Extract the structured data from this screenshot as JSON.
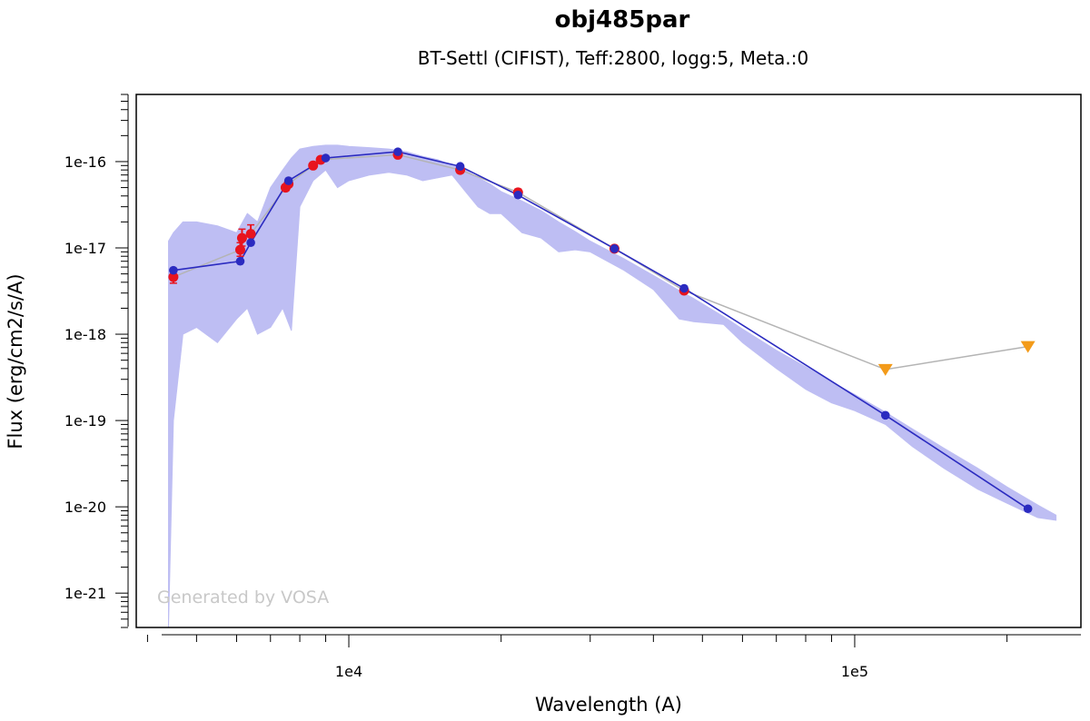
{
  "chart_data": {
    "type": "scatter",
    "title": "obj485par",
    "subtitle": "BT-Settl (CIFIST), Teff:2800, logg:5, Meta.:0",
    "xlabel": "Wavelength (A)",
    "ylabel": "Flux (erg/cm2/s/A)",
    "xscale": "log",
    "yscale": "log",
    "xlim": [
      3800,
      280000
    ],
    "ylim": [
      4e-22,
      6e-16
    ],
    "x_tick_labels": [
      "1e4",
      "1e5"
    ],
    "y_tick_labels": [
      "1e-16",
      "1e-17",
      "1e-18",
      "1e-19",
      "1e-20",
      "1e-21"
    ],
    "watermark": "Generated by VOSA",
    "colors": {
      "model_spectrum": "#b7b7f2",
      "model_points": "#2b2bc0",
      "observed": "#e8141e",
      "upper_limits": "#f39b1a",
      "observed_line": "#b4b4b4"
    },
    "series": [
      {
        "name": "model spectrum",
        "kind": "band",
        "x": [
          4400,
          4500,
          4700,
          5000,
          5500,
          6000,
          6300,
          6600,
          7000,
          7400,
          7700,
          8000,
          8500,
          9000,
          9500,
          10000,
          11000,
          12000,
          13000,
          14000,
          15000,
          16000,
          17000,
          18000,
          19000,
          20000,
          22000,
          24000,
          26000,
          28000,
          30000,
          35000,
          40000,
          45000,
          48000,
          55000,
          60000,
          70000,
          80000,
          90000,
          100000,
          115000,
          130000,
          150000,
          175000,
          200000,
          230000,
          250000
        ],
        "upper": [
          1.2e-17,
          1.5e-17,
          2e-17,
          2e-17,
          1.8e-17,
          1.5e-17,
          2.5e-17,
          2e-17,
          5e-17,
          8e-17,
          1.1e-16,
          1.4e-16,
          1.5e-16,
          1.55e-16,
          1.55e-16,
          1.5e-16,
          1.45e-16,
          1.4e-16,
          1.3e-16,
          1.15e-16,
          1.05e-16,
          9e-17,
          8e-17,
          6.5e-17,
          5.5e-17,
          4.5e-17,
          3.5e-17,
          2.7e-17,
          2e-17,
          1.55e-17,
          1.2e-17,
          7.5e-18,
          4.8e-18,
          3.2e-18,
          2.6e-18,
          1.6e-18,
          1.15e-18,
          6.5e-19,
          4.2e-19,
          2.8e-19,
          2e-19,
          1.25e-19,
          8e-20,
          4.8e-20,
          2.8e-20,
          1.7e-20,
          1.05e-20,
          8e-21
        ],
        "lower": [
          4e-22,
          1e-19,
          1e-18,
          1.2e-18,
          8e-19,
          1.5e-18,
          2e-18,
          1e-18,
          1.2e-18,
          2e-18,
          1.1e-18,
          3e-17,
          6e-17,
          8e-17,
          5e-17,
          6e-17,
          7e-17,
          7.5e-17,
          7e-17,
          6e-17,
          6.5e-17,
          7e-17,
          4.5e-17,
          3e-17,
          2.5e-17,
          2.5e-17,
          1.5e-17,
          1.3e-17,
          9e-18,
          9.5e-18,
          9e-18,
          5.5e-18,
          3.3e-18,
          1.5e-18,
          1.4e-18,
          1.3e-18,
          8e-19,
          4e-19,
          2.3e-19,
          1.6e-19,
          1.3e-19,
          9e-20,
          5e-20,
          2.8e-20,
          1.6e-20,
          1.1e-20,
          7.5e-21,
          7e-21
        ]
      },
      {
        "name": "model synthetic photometry",
        "kind": "line+markers",
        "x": [
          4500,
          6100,
          6400,
          7600,
          9000,
          12500,
          16600,
          21600,
          33500,
          46000,
          115000,
          220000
        ],
        "y": [
          5.5e-18,
          7e-18,
          1.15e-17,
          6e-17,
          1.1e-16,
          1.3e-16,
          8.8e-17,
          4.1e-17,
          9.8e-18,
          3.4e-18,
          1.15e-19,
          9.5e-21
        ]
      },
      {
        "name": "observed photometry",
        "kind": "markers+errorbars",
        "x": [
          4500,
          6100,
          6150,
          6400,
          7500,
          7600,
          8500,
          8800,
          12500,
          16600,
          21600,
          33500,
          46000
        ],
        "y": [
          4.6e-18,
          9.5e-18,
          1.3e-17,
          1.45e-17,
          5e-17,
          5.5e-17,
          9e-17,
          1.05e-16,
          1.2e-16,
          8e-17,
          4.4e-17,
          9.8e-18,
          3.2e-18
        ],
        "err_low": [
          3.9e-18,
          8e-18,
          1.05e-17,
          1.15e-17,
          4.6e-17,
          5.1e-17,
          8.4e-17,
          9.8e-17,
          1.13e-16,
          7.4e-17,
          4e-17,
          9.2e-18,
          3e-18
        ],
        "err_high": [
          5.4e-18,
          1.15e-17,
          1.65e-17,
          1.85e-17,
          5.4e-17,
          6e-17,
          9.6e-17,
          1.12e-16,
          1.28e-16,
          8.7e-17,
          4.8e-17,
          1.04e-17,
          3.4e-18
        ]
      },
      {
        "name": "upper limits",
        "kind": "triangle-down",
        "x": [
          115000,
          220000
        ],
        "y": [
          3.9e-19,
          7.2e-19
        ]
      }
    ]
  }
}
